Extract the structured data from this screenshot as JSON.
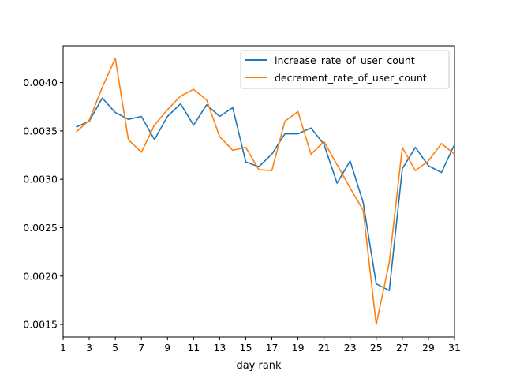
{
  "chart_data": {
    "type": "line",
    "title": "",
    "xlabel": "day rank",
    "ylabel": "",
    "xlim": [
      1,
      31
    ],
    "ylim": [
      0.00137,
      0.00438
    ],
    "x_ticks": [
      1,
      3,
      5,
      7,
      9,
      11,
      13,
      15,
      17,
      19,
      21,
      23,
      25,
      27,
      29,
      31
    ],
    "x_tick_labels": [
      "1",
      "3",
      "5",
      "7",
      "9",
      "11",
      "13",
      "15",
      "17",
      "19",
      "21",
      "23",
      "25",
      "27",
      "29",
      "31"
    ],
    "y_ticks": [
      0.0015,
      0.002,
      0.0025,
      0.003,
      0.0035,
      0.004
    ],
    "y_tick_labels": [
      "0.0015",
      "0.0020",
      "0.0025",
      "0.0030",
      "0.0035",
      "0.0040"
    ],
    "grid": false,
    "legend_position": "top-right",
    "x": [
      2,
      3,
      4,
      5,
      6,
      7,
      8,
      9,
      10,
      11,
      12,
      13,
      14,
      15,
      16,
      17,
      18,
      19,
      20,
      21,
      22,
      23,
      24,
      25,
      26,
      27,
      28,
      29,
      30,
      31
    ],
    "series": [
      {
        "name": "increase_rate_of_user_count",
        "color": "#1f77b4",
        "values": [
          0.00354,
          0.0036,
          0.00384,
          0.00369,
          0.00362,
          0.00365,
          0.00341,
          0.00365,
          0.00378,
          0.00356,
          0.00377,
          0.00365,
          0.00374,
          0.00318,
          0.00313,
          0.00326,
          0.00347,
          0.00347,
          0.00353,
          0.00336,
          0.00296,
          0.00319,
          0.00276,
          0.00192,
          0.00185,
          0.00311,
          0.00333,
          0.00314,
          0.00307,
          0.00336
        ]
      },
      {
        "name": "decrement_rate_of_user_count",
        "color": "#ff7f0e",
        "values": [
          0.00349,
          0.00361,
          0.00395,
          0.00425,
          0.00341,
          0.00328,
          0.00356,
          0.00372,
          0.00386,
          0.00393,
          0.00382,
          0.00344,
          0.0033,
          0.00333,
          0.0031,
          0.00309,
          0.0036,
          0.0037,
          0.00326,
          0.00339,
          0.00315,
          0.00291,
          0.00268,
          0.0015,
          0.00214,
          0.00333,
          0.00309,
          0.00319,
          0.00337,
          0.00326
        ]
      }
    ]
  }
}
